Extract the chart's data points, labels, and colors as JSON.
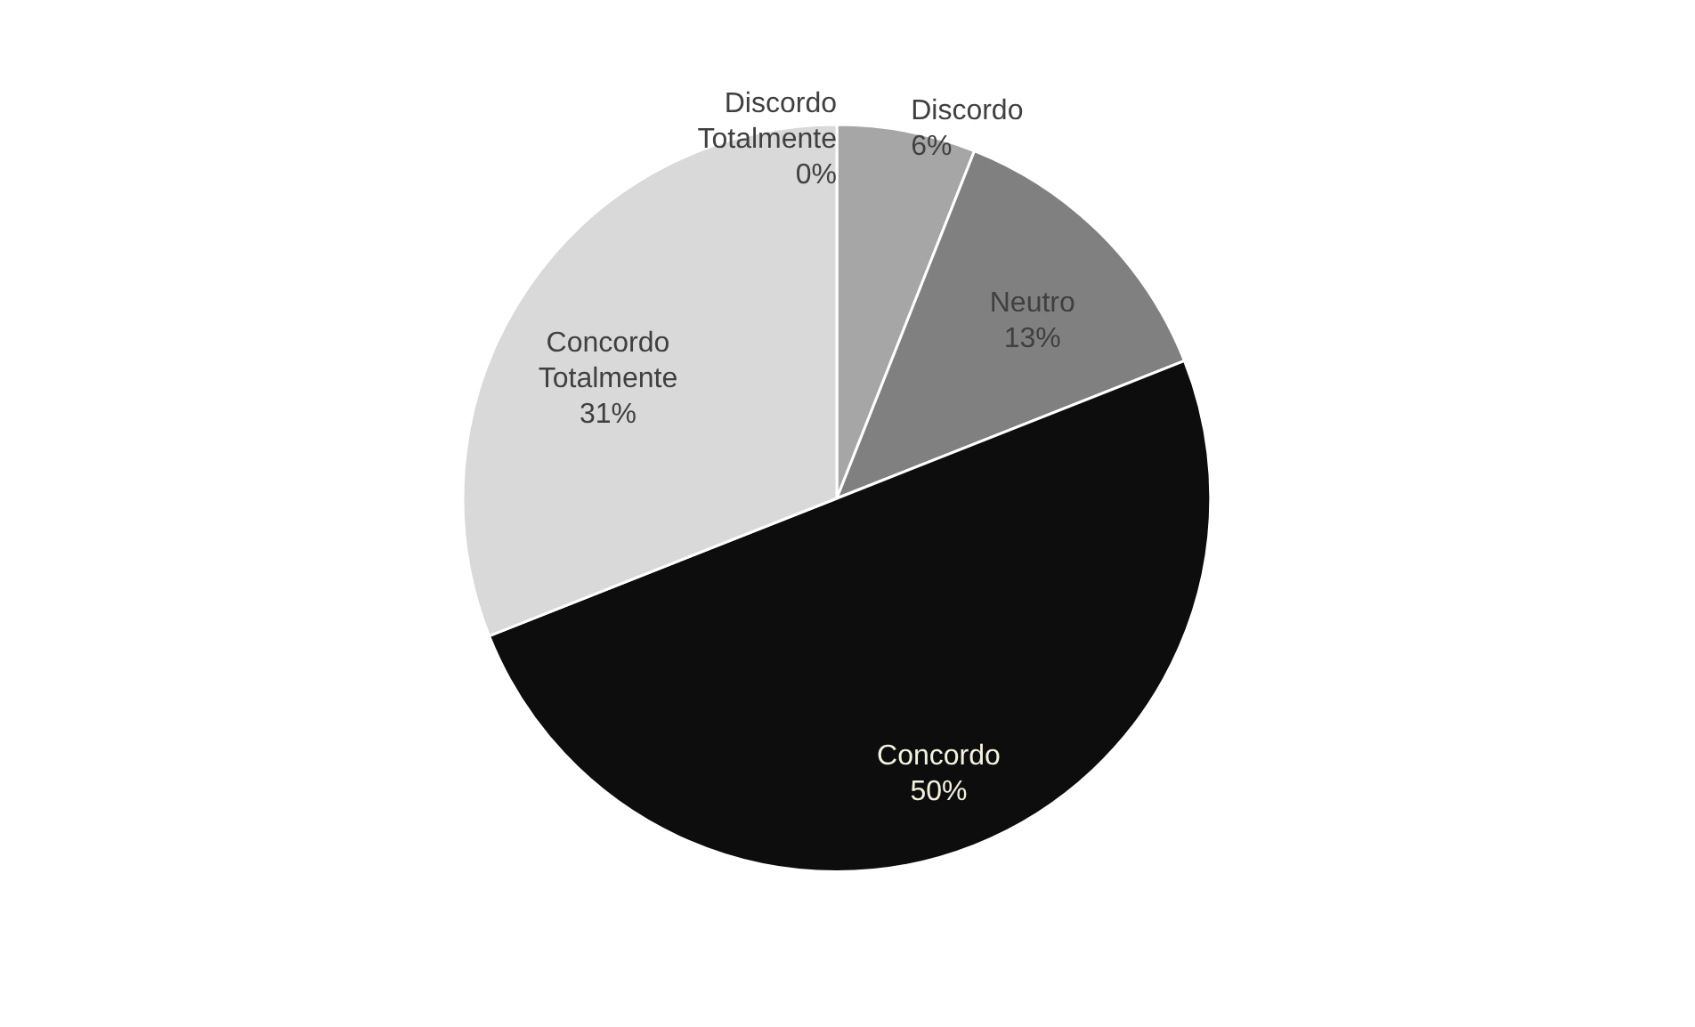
{
  "chart_data": {
    "type": "pie",
    "categories": [
      "Discordo Totalmente",
      "Discordo",
      "Neutro",
      "Concordo",
      "Concordo Totalmente"
    ],
    "values": [
      0,
      6,
      13,
      50,
      31
    ],
    "colors": [
      "#bfbfbf",
      "#a6a6a6",
      "#808080",
      "#0d0d0d",
      "#d9d9d9"
    ],
    "value_labels": [
      "0%",
      "6%",
      "13%",
      "50%",
      "31%"
    ]
  }
}
